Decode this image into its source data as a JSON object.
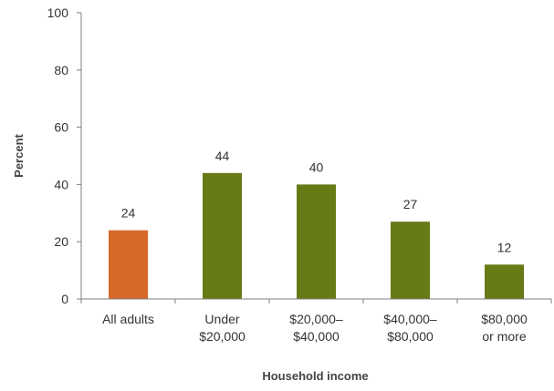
{
  "chart_data": {
    "type": "bar",
    "title": "",
    "xlabel": "Household income",
    "ylabel": "Percent",
    "ylim": [
      0,
      100
    ],
    "yticks": [
      0,
      20,
      40,
      60,
      80,
      100
    ],
    "grid": false,
    "categories": [
      [
        "All adults"
      ],
      [
        "Under",
        "$20,000"
      ],
      [
        "$20,000–",
        "$40,000"
      ],
      [
        "$40,000–",
        "$80,000"
      ],
      [
        "$80,000",
        "or more"
      ]
    ],
    "values": [
      24,
      44,
      40,
      27,
      12
    ],
    "colors": [
      "#d4692a",
      "#667a16",
      "#667a16",
      "#667a16",
      "#667a16"
    ],
    "axis_color": "#7f7f7f",
    "text_color": "#333333"
  }
}
